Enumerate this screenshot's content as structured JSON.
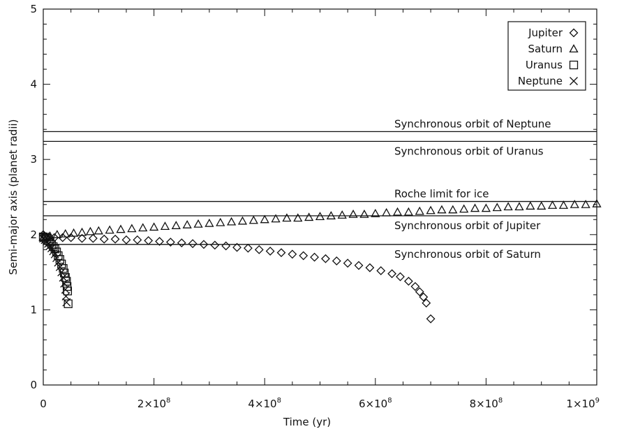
{
  "chart_data": {
    "type": "scatter",
    "xlabel": "Time (yr)",
    "ylabel": "Semi-major axis (planet radii)",
    "xlim": [
      0,
      1000000000
    ],
    "ylim": [
      0,
      5
    ],
    "grid": false,
    "legend_position": "top-right",
    "x_ticks": [
      {
        "value": 0,
        "label": "0"
      },
      {
        "value": 200000000,
        "mantissa": "2×10",
        "exp": "8"
      },
      {
        "value": 400000000,
        "mantissa": "4×10",
        "exp": "8"
      },
      {
        "value": 600000000,
        "mantissa": "6×10",
        "exp": "8"
      },
      {
        "value": 800000000,
        "mantissa": "8×10",
        "exp": "8"
      },
      {
        "value": 1000000000,
        "mantissa": "1×10",
        "exp": "9"
      }
    ],
    "y_ticks": [
      {
        "value": 0,
        "label": "0"
      },
      {
        "value": 1,
        "label": "1"
      },
      {
        "value": 2,
        "label": "2"
      },
      {
        "value": 3,
        "label": "3"
      },
      {
        "value": 4,
        "label": "4"
      },
      {
        "value": 5,
        "label": "5"
      }
    ],
    "reference_lines": [
      {
        "y": 3.37,
        "label": "Synchronous orbit of Neptune",
        "label_side": "above"
      },
      {
        "y": 3.24,
        "label": "Synchronous orbit of Uranus",
        "label_side": "below"
      },
      {
        "y": 2.44,
        "label": "Roche limit for ice",
        "label_side": "above"
      },
      {
        "y": 2.25,
        "label": "Synchronous orbit of Jupiter",
        "label_side": "below"
      },
      {
        "y": 1.87,
        "label": "Synchronous orbit of Saturn",
        "label_side": "below"
      }
    ],
    "series": [
      {
        "name": "Jupiter",
        "marker": "diamond",
        "symbol": "◇",
        "points": [
          [
            0,
            2.0
          ],
          [
            2000000,
            1.98
          ],
          [
            5000000,
            1.97
          ],
          [
            10000000,
            1.97
          ],
          [
            20000000,
            1.96
          ],
          [
            35000000,
            1.96
          ],
          [
            50000000,
            1.96
          ],
          [
            70000000,
            1.95
          ],
          [
            90000000,
            1.95
          ],
          [
            110000000,
            1.94
          ],
          [
            130000000,
            1.94
          ],
          [
            150000000,
            1.93
          ],
          [
            170000000,
            1.93
          ],
          [
            190000000,
            1.92
          ],
          [
            210000000,
            1.91
          ],
          [
            230000000,
            1.9
          ],
          [
            250000000,
            1.89
          ],
          [
            270000000,
            1.88
          ],
          [
            290000000,
            1.87
          ],
          [
            310000000,
            1.86
          ],
          [
            330000000,
            1.85
          ],
          [
            350000000,
            1.83
          ],
          [
            370000000,
            1.82
          ],
          [
            390000000,
            1.8
          ],
          [
            410000000,
            1.78
          ],
          [
            430000000,
            1.76
          ],
          [
            450000000,
            1.74
          ],
          [
            470000000,
            1.72
          ],
          [
            490000000,
            1.7
          ],
          [
            510000000,
            1.68
          ],
          [
            530000000,
            1.65
          ],
          [
            550000000,
            1.62
          ],
          [
            570000000,
            1.59
          ],
          [
            590000000,
            1.56
          ],
          [
            610000000,
            1.52
          ],
          [
            630000000,
            1.48
          ],
          [
            645000000,
            1.44
          ],
          [
            660000000,
            1.38
          ],
          [
            672000000,
            1.31
          ],
          [
            680000000,
            1.24
          ],
          [
            687000000,
            1.17
          ],
          [
            692000000,
            1.09
          ],
          [
            700000000,
            0.88
          ]
        ]
      },
      {
        "name": "Saturn",
        "marker": "triangle",
        "symbol": "△",
        "points": [
          [
            0,
            1.96
          ],
          [
            12000000,
            1.98
          ],
          [
            25000000,
            2.0
          ],
          [
            40000000,
            2.01
          ],
          [
            55000000,
            2.02
          ],
          [
            70000000,
            2.03
          ],
          [
            85000000,
            2.04
          ],
          [
            100000000,
            2.05
          ],
          [
            120000000,
            2.06
          ],
          [
            140000000,
            2.07
          ],
          [
            160000000,
            2.08
          ],
          [
            180000000,
            2.09
          ],
          [
            200000000,
            2.1
          ],
          [
            220000000,
            2.11
          ],
          [
            240000000,
            2.12
          ],
          [
            260000000,
            2.13
          ],
          [
            280000000,
            2.14
          ],
          [
            300000000,
            2.15
          ],
          [
            320000000,
            2.16
          ],
          [
            340000000,
            2.17
          ],
          [
            360000000,
            2.18
          ],
          [
            380000000,
            2.19
          ],
          [
            400000000,
            2.2
          ],
          [
            420000000,
            2.21
          ],
          [
            440000000,
            2.22
          ],
          [
            460000000,
            2.22
          ],
          [
            480000000,
            2.23
          ],
          [
            500000000,
            2.24
          ],
          [
            520000000,
            2.25
          ],
          [
            540000000,
            2.26
          ],
          [
            560000000,
            2.27
          ],
          [
            580000000,
            2.27
          ],
          [
            600000000,
            2.28
          ],
          [
            620000000,
            2.29
          ],
          [
            640000000,
            2.3
          ],
          [
            660000000,
            2.3
          ],
          [
            680000000,
            2.31
          ],
          [
            700000000,
            2.32
          ],
          [
            720000000,
            2.33
          ],
          [
            740000000,
            2.33
          ],
          [
            760000000,
            2.34
          ],
          [
            780000000,
            2.35
          ],
          [
            800000000,
            2.35
          ],
          [
            820000000,
            2.36
          ],
          [
            840000000,
            2.37
          ],
          [
            860000000,
            2.37
          ],
          [
            880000000,
            2.38
          ],
          [
            900000000,
            2.38
          ],
          [
            920000000,
            2.39
          ],
          [
            940000000,
            2.39
          ],
          [
            960000000,
            2.4
          ],
          [
            980000000,
            2.4
          ],
          [
            1000000000,
            2.41
          ]
        ]
      },
      {
        "name": "Uranus",
        "marker": "square",
        "symbol": "□",
        "points": [
          [
            0,
            1.97
          ],
          [
            3000000,
            1.96
          ],
          [
            6000000,
            1.94
          ],
          [
            9000000,
            1.92
          ],
          [
            12000000,
            1.9
          ],
          [
            15000000,
            1.87
          ],
          [
            18000000,
            1.84
          ],
          [
            21000000,
            1.81
          ],
          [
            24000000,
            1.77
          ],
          [
            27000000,
            1.72
          ],
          [
            30000000,
            1.67
          ],
          [
            33000000,
            1.61
          ],
          [
            36000000,
            1.55
          ],
          [
            38000000,
            1.49
          ],
          [
            40000000,
            1.43
          ],
          [
            42000000,
            1.38
          ],
          [
            43000000,
            1.31
          ],
          [
            44000000,
            1.25
          ],
          [
            45000000,
            1.08
          ]
        ]
      },
      {
        "name": "Neptune",
        "marker": "cross",
        "symbol": "×",
        "points": [
          [
            0,
            1.95
          ],
          [
            3000000,
            1.93
          ],
          [
            6000000,
            1.91
          ],
          [
            9000000,
            1.88
          ],
          [
            12000000,
            1.85
          ],
          [
            15000000,
            1.82
          ],
          [
            18000000,
            1.78
          ],
          [
            21000000,
            1.74
          ],
          [
            24000000,
            1.69
          ],
          [
            27000000,
            1.63
          ],
          [
            30000000,
            1.57
          ],
          [
            33000000,
            1.5
          ],
          [
            36000000,
            1.43
          ],
          [
            38000000,
            1.35
          ],
          [
            40000000,
            1.27
          ],
          [
            41000000,
            1.18
          ],
          [
            42000000,
            1.1
          ]
        ]
      }
    ]
  }
}
